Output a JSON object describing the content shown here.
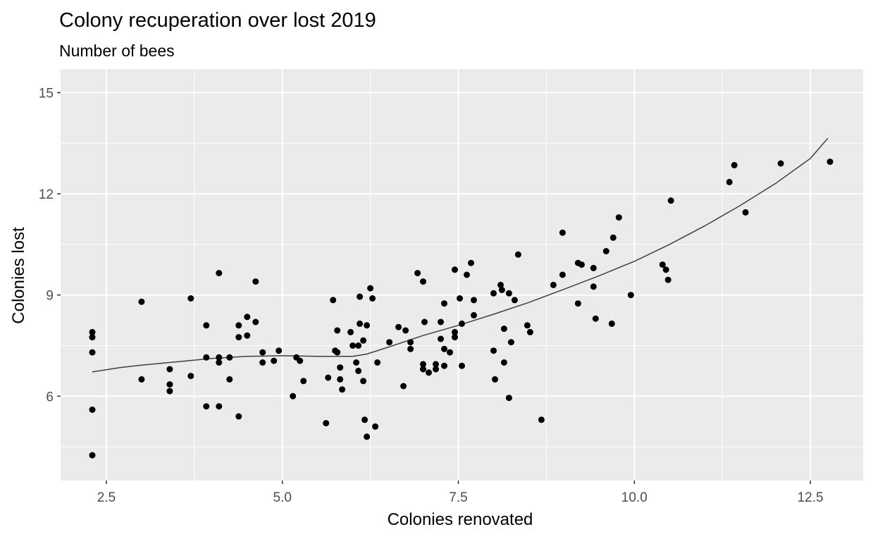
{
  "chart_data": {
    "type": "scatter",
    "title": "Colony recuperation over lost 2019",
    "subtitle": "Number of bees",
    "xlabel": "Colonies renovated",
    "ylabel": "Colonies lost",
    "xlim": [
      1.85,
      13.25
    ],
    "ylim": [
      3.5,
      15.7
    ],
    "x_ticks": [
      2.5,
      5.0,
      7.5,
      10.0,
      12.5
    ],
    "x_tick_labels": [
      "2.5",
      "5.0",
      "7.5",
      "10.0",
      "12.5"
    ],
    "y_ticks": [
      6,
      9,
      12,
      15
    ],
    "y_tick_labels": [
      "6",
      "9",
      "12",
      "15"
    ],
    "grid": true,
    "legend": "none",
    "colors": {
      "panel": "#ebebeb",
      "grid": "#ffffff",
      "point": "#000000",
      "smooth_line": "#404040"
    },
    "points": [
      [
        2.3,
        7.9
      ],
      [
        2.3,
        7.75
      ],
      [
        2.3,
        7.3
      ],
      [
        2.3,
        5.6
      ],
      [
        2.3,
        4.25
      ],
      [
        3.0,
        8.8
      ],
      [
        3.0,
        6.5
      ],
      [
        3.4,
        6.8
      ],
      [
        3.4,
        6.35
      ],
      [
        3.4,
        6.15
      ],
      [
        3.7,
        8.9
      ],
      [
        3.7,
        6.6
      ],
      [
        3.92,
        8.1
      ],
      [
        3.92,
        7.15
      ],
      [
        3.92,
        5.7
      ],
      [
        4.1,
        9.65
      ],
      [
        4.1,
        7.15
      ],
      [
        4.1,
        7.0
      ],
      [
        4.1,
        5.7
      ],
      [
        4.25,
        7.15
      ],
      [
        4.25,
        6.5
      ],
      [
        4.38,
        8.1
      ],
      [
        4.38,
        7.75
      ],
      [
        4.38,
        5.4
      ],
      [
        4.5,
        8.35
      ],
      [
        4.5,
        7.8
      ],
      [
        4.62,
        9.4
      ],
      [
        4.62,
        8.2
      ],
      [
        4.72,
        7.3
      ],
      [
        4.72,
        7.0
      ],
      [
        4.88,
        7.05
      ],
      [
        4.95,
        7.35
      ],
      [
        5.15,
        6.0
      ],
      [
        5.2,
        7.15
      ],
      [
        5.25,
        7.05
      ],
      [
        5.3,
        6.45
      ],
      [
        5.62,
        5.2
      ],
      [
        5.65,
        6.55
      ],
      [
        5.72,
        8.85
      ],
      [
        5.75,
        7.35
      ],
      [
        5.78,
        7.95
      ],
      [
        5.78,
        7.3
      ],
      [
        5.82,
        6.85
      ],
      [
        5.82,
        6.5
      ],
      [
        5.85,
        6.2
      ],
      [
        5.97,
        7.9
      ],
      [
        6.0,
        7.5
      ],
      [
        6.05,
        7.0
      ],
      [
        6.08,
        6.75
      ],
      [
        6.08,
        7.5
      ],
      [
        6.1,
        8.95
      ],
      [
        6.1,
        8.15
      ],
      [
        6.15,
        7.65
      ],
      [
        6.15,
        6.45
      ],
      [
        6.17,
        5.3
      ],
      [
        6.2,
        4.8
      ],
      [
        6.2,
        8.1
      ],
      [
        6.25,
        9.2
      ],
      [
        6.28,
        8.9
      ],
      [
        6.32,
        5.1
      ],
      [
        6.35,
        7.0
      ],
      [
        6.52,
        7.6
      ],
      [
        6.65,
        8.05
      ],
      [
        6.72,
        6.3
      ],
      [
        6.75,
        7.95
      ],
      [
        6.82,
        7.6
      ],
      [
        6.82,
        7.4
      ],
      [
        6.92,
        9.65
      ],
      [
        7.0,
        9.4
      ],
      [
        7.02,
        8.2
      ],
      [
        7.0,
        6.95
      ],
      [
        7.0,
        6.8
      ],
      [
        7.08,
        6.7
      ],
      [
        7.18,
        6.95
      ],
      [
        7.18,
        6.8
      ],
      [
        7.25,
        8.2
      ],
      [
        7.25,
        7.7
      ],
      [
        7.3,
        8.75
      ],
      [
        7.3,
        7.4
      ],
      [
        7.3,
        6.9
      ],
      [
        7.38,
        7.3
      ],
      [
        7.45,
        9.75
      ],
      [
        7.45,
        7.9
      ],
      [
        7.45,
        7.75
      ],
      [
        7.52,
        8.9
      ],
      [
        7.55,
        8.15
      ],
      [
        7.55,
        6.9
      ],
      [
        7.62,
        9.6
      ],
      [
        7.68,
        9.95
      ],
      [
        7.72,
        8.85
      ],
      [
        7.72,
        8.4
      ],
      [
        8.0,
        9.05
      ],
      [
        8.0,
        7.35
      ],
      [
        8.02,
        6.5
      ],
      [
        8.1,
        9.3
      ],
      [
        8.12,
        9.15
      ],
      [
        8.15,
        8.0
      ],
      [
        8.15,
        7.0
      ],
      [
        8.22,
        9.05
      ],
      [
        8.22,
        5.95
      ],
      [
        8.25,
        7.6
      ],
      [
        8.3,
        8.85
      ],
      [
        8.35,
        10.2
      ],
      [
        8.48,
        8.1
      ],
      [
        8.52,
        7.9
      ],
      [
        8.68,
        5.3
      ],
      [
        8.85,
        9.3
      ],
      [
        8.98,
        10.85
      ],
      [
        8.98,
        9.6
      ],
      [
        9.2,
        9.95
      ],
      [
        9.2,
        8.75
      ],
      [
        9.25,
        9.9
      ],
      [
        9.42,
        9.8
      ],
      [
        9.42,
        9.25
      ],
      [
        9.45,
        8.3
      ],
      [
        9.6,
        10.3
      ],
      [
        9.68,
        8.15
      ],
      [
        9.7,
        10.7
      ],
      [
        9.78,
        11.3
      ],
      [
        9.95,
        9.0
      ],
      [
        10.4,
        9.9
      ],
      [
        10.45,
        9.75
      ],
      [
        10.48,
        9.45
      ],
      [
        10.52,
        11.8
      ],
      [
        11.35,
        12.35
      ],
      [
        11.42,
        12.85
      ],
      [
        11.58,
        11.45
      ],
      [
        12.08,
        12.9
      ],
      [
        12.78,
        12.95
      ]
    ],
    "smooth": {
      "x": [
        2.3,
        2.7,
        3.0,
        3.5,
        4.0,
        4.5,
        5.0,
        5.5,
        6.0,
        6.2,
        6.5,
        7.0,
        7.5,
        8.0,
        8.5,
        9.0,
        9.5,
        10.0,
        10.5,
        11.0,
        11.5,
        12.0,
        12.5,
        12.75
      ],
      "y": [
        6.72,
        6.85,
        6.92,
        7.02,
        7.12,
        7.18,
        7.2,
        7.18,
        7.18,
        7.25,
        7.45,
        7.8,
        8.1,
        8.43,
        8.78,
        9.17,
        9.57,
        10.0,
        10.5,
        11.05,
        11.65,
        12.3,
        13.05,
        13.65
      ]
    }
  }
}
